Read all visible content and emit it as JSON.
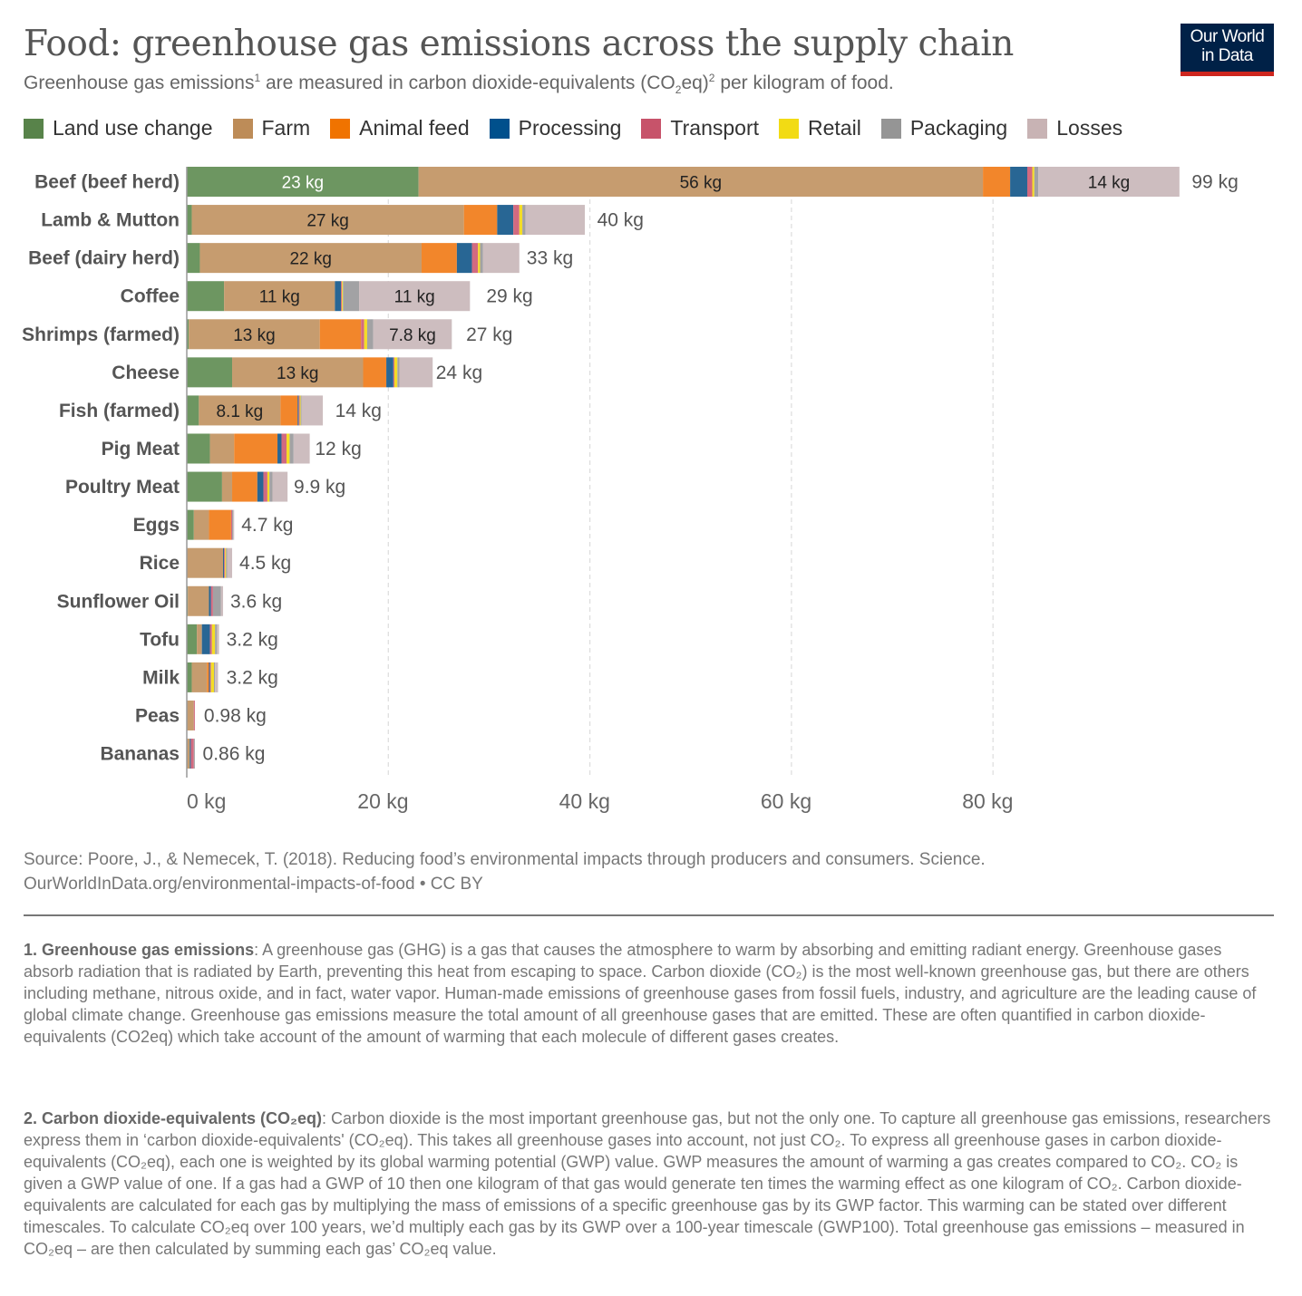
{
  "header": {
    "title": "Food: greenhouse gas emissions across the supply chain",
    "subtitle_parts": [
      "Greenhouse gas emissions",
      "1",
      " are measured in carbon dioxide-equivalents (CO",
      "2",
      "eq)",
      "2",
      " per kilogram of food."
    ],
    "logo_line1": "Our World",
    "logo_line2": "in Data"
  },
  "colors": {
    "logo_bg": "#002147",
    "logo_accent": "#ce261e"
  },
  "chart_data": {
    "type": "bar",
    "orientation": "horizontal",
    "stacked": true,
    "title": "Food: greenhouse gas emissions across the supply chain",
    "xlabel": "",
    "ylabel": "",
    "xlim": [
      0,
      99
    ],
    "unit": "kg",
    "grid": true,
    "legend_position": "top",
    "xticks": [
      {
        "value": 0,
        "label": "0 kg"
      },
      {
        "value": 20,
        "label": "20 kg"
      },
      {
        "value": 40,
        "label": "40 kg"
      },
      {
        "value": 60,
        "label": "60 kg"
      },
      {
        "value": 80,
        "label": "80 kg"
      }
    ],
    "categories": [
      "Beef (beef herd)",
      "Lamb & Mutton",
      "Beef (dairy herd)",
      "Coffee",
      "Shrimps (farmed)",
      "Cheese",
      "Fish (farmed)",
      "Pig Meat",
      "Poultry Meat",
      "Eggs",
      "Rice",
      "Sunflower Oil",
      "Tofu",
      "Milk",
      "Peas",
      "Bananas"
    ],
    "totals": [
      99,
      40,
      33,
      29,
      27,
      24,
      14,
      12,
      9.9,
      4.7,
      4.5,
      3.6,
      3.2,
      3.2,
      0.98,
      0.86
    ],
    "total_labels": [
      "99 kg",
      "40 kg",
      "33 kg",
      "29 kg",
      "27 kg",
      "24 kg",
      "14 kg",
      "12 kg",
      "9.9 kg",
      "4.7 kg",
      "4.5 kg",
      "3.6 kg",
      "3.2 kg",
      "3.2 kg",
      "0.98 kg",
      "0.86 kg"
    ],
    "series": [
      {
        "name": "Land use change",
        "color": "#6d9661",
        "legend_color": "#58834a",
        "values": [
          23,
          0.5,
          1.3,
          3.7,
          0.2,
          4.5,
          1.2,
          2.3,
          3.5,
          0.7,
          0,
          0.1,
          1.0,
          0.5,
          0,
          0
        ],
        "labels": [
          "23 kg",
          "",
          "",
          "",
          "",
          "",
          "",
          "",
          "",
          "",
          "",
          "",
          "",
          "",
          "",
          ""
        ]
      },
      {
        "name": "Farm",
        "color": "#c69c6f",
        "legend_color": "#bd8c58",
        "values": [
          56,
          27,
          22,
          11,
          13,
          13,
          8.1,
          2.4,
          1.0,
          1.5,
          3.6,
          2.1,
          0.5,
          1.5,
          0.7,
          0.3
        ],
        "labels": [
          "56 kg",
          "27 kg",
          "22 kg",
          "11 kg",
          "13 kg",
          "13 kg",
          "8.1 kg",
          "",
          "",
          "",
          "",
          "",
          "",
          "",
          "",
          ""
        ]
      },
      {
        "name": "Animal feed",
        "color": "#f2862b",
        "legend_color": "#f07300",
        "values": [
          2.7,
          3.3,
          3.5,
          0,
          4.1,
          2.3,
          1.7,
          4.3,
          2.5,
          2.2,
          0,
          0,
          0,
          0.2,
          0,
          0
        ],
        "labels": [
          "",
          "",
          "",
          "",
          "",
          "",
          "",
          "",
          "",
          "",
          "",
          "",
          "",
          "",
          "",
          ""
        ]
      },
      {
        "name": "Processing",
        "color": "#286694",
        "legend_color": "#00508c",
        "values": [
          1.7,
          1.6,
          1.5,
          0.6,
          0,
          0.7,
          0.1,
          0.4,
          0.6,
          0,
          0.1,
          0.2,
          0.8,
          0.1,
          0,
          0.1
        ],
        "labels": [
          "",
          "",
          "",
          "",
          "",
          "",
          "",
          "",
          "",
          "",
          "",
          "",
          "",
          "",
          "",
          ""
        ]
      },
      {
        "name": "Transport",
        "color": "#d26a80",
        "legend_color": "#c7536a",
        "values": [
          0.5,
          0.6,
          0.6,
          0.1,
          0.3,
          0.1,
          0.1,
          0.5,
          0.4,
          0.1,
          0.1,
          0.2,
          0.2,
          0.1,
          0.1,
          0.3
        ],
        "labels": [
          "",
          "",
          "",
          "",
          "",
          "",
          "",
          "",
          "",
          "",
          "",
          "",
          "",
          "",
          "",
          ""
        ]
      },
      {
        "name": "Retail",
        "color": "#f4dc26",
        "legend_color": "#f2db14",
        "values": [
          0.2,
          0.3,
          0.2,
          0.1,
          0.3,
          0.3,
          0.1,
          0.3,
          0.2,
          0,
          0.1,
          0,
          0.3,
          0.3,
          0,
          0
        ],
        "labels": [
          "",
          "",
          "",
          "",
          "",
          "",
          "",
          "",
          "",
          "",
          "",
          "",
          "",
          "",
          "",
          ""
        ]
      },
      {
        "name": "Packaging",
        "color": "#a2a2a4",
        "legend_color": "#959595",
        "values": [
          0.4,
          0.3,
          0.3,
          1.6,
          0.6,
          0.2,
          0.1,
          0.4,
          0.3,
          0.1,
          0.1,
          0.8,
          0.2,
          0.1,
          0,
          0.1
        ],
        "labels": [
          "",
          "",
          "",
          "",
          "",
          "",
          "",
          "",
          "",
          "",
          "",
          "",
          "",
          "",
          "",
          ""
        ]
      },
      {
        "name": "Losses",
        "color": "#cdbdbf",
        "legend_color": "#c8b3b4",
        "values": [
          14,
          5.9,
          3.6,
          11,
          7.8,
          3.3,
          2.1,
          1.6,
          1.5,
          0.1,
          0.5,
          0.2,
          0.2,
          0.3,
          0,
          0
        ],
        "labels": [
          "14 kg",
          "",
          "",
          "11 kg",
          "7.8 kg",
          "",
          "",
          "",
          "",
          "",
          "",
          "",
          "",
          "",
          "",
          ""
        ]
      }
    ]
  },
  "footer": {
    "source_line1": "Source: Poore, J., & Nemecek, T. (2018). Reducing food’s environmental impacts through producers and consumers. Science.",
    "source_line2": "OurWorldInData.org/environmental-impacts-of-food • CC BY"
  },
  "notes": [
    {
      "title_parts": [
        "1. Greenhouse gas emissions"
      ],
      "body": ": A greenhouse gas (GHG) is a gas that causes the atmosphere to warm by absorbing and emitting radiant energy. Greenhouse gases absorb radiation that is radiated by Earth, preventing this heat from escaping to space. Carbon dioxide (CO₂) is the most well-known greenhouse gas, but there are others including methane, nitrous oxide, and in fact, water vapor. Human-made emissions of greenhouse gases from fossil fuels, industry, and agriculture are the leading cause of global climate change. Greenhouse gas emissions measure the total amount of all greenhouse gases that are emitted. These are often quantified in carbon dioxide-equivalents (CO2eq) which take account of the amount of warming that each molecule of different gases creates."
    },
    {
      "title_parts": [
        "2. Carbon dioxide-equivalents (CO₂eq)"
      ],
      "body": ": Carbon dioxide is the most important greenhouse gas, but not the only one. To capture all greenhouse gas emissions, researchers express them in ‘carbon dioxide-equivalents' (CO₂eq). This takes all greenhouse gases into account, not just CO₂. To express all greenhouse gases in carbon dioxide-equivalents (CO₂eq), each one is weighted by its global warming potential (GWP) value. GWP measures the amount of warming a gas creates compared to CO₂. CO₂ is given a GWP value of one. If a gas had a GWP of 10 then one kilogram of that gas would generate ten times the warming effect as one kilogram of CO₂. Carbon dioxide-equivalents are calculated for each gas by multiplying the mass of emissions of a specific greenhouse gas by its GWP factor. This warming can be stated over different timescales. To calculate CO₂eq over 100 years, we’d multiply each gas by its GWP over a 100-year timescale (GWP100). Total greenhouse gas emissions – measured in CO₂eq – are then calculated by summing each gas’ CO₂eq value."
    }
  ]
}
